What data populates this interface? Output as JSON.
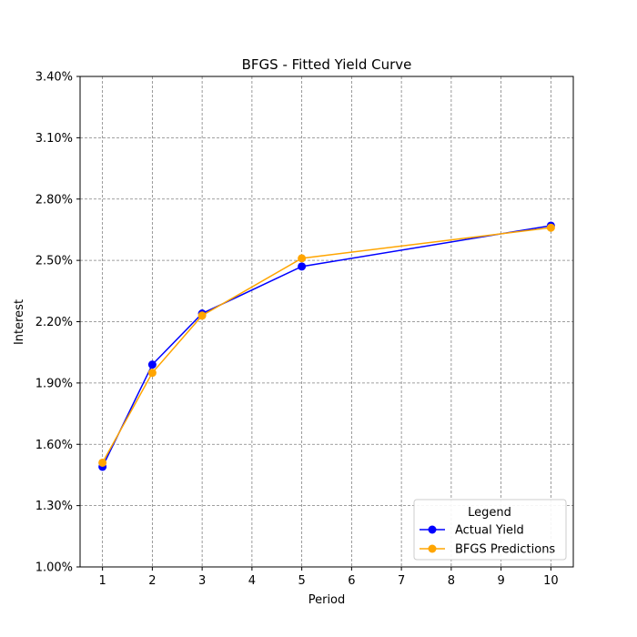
{
  "chart_data": {
    "type": "line",
    "title": "BFGS - Fitted Yield Curve",
    "xlabel": "Period",
    "ylabel": "Interest",
    "x": [
      1,
      2,
      3,
      5,
      10
    ],
    "x_ticks": [
      1,
      2,
      3,
      4,
      5,
      6,
      7,
      8,
      9,
      10
    ],
    "x_tick_labels": [
      "1",
      "2",
      "3",
      "4",
      "5",
      "6",
      "7",
      "8",
      "9",
      "10"
    ],
    "xlim": [
      0.55,
      10.45
    ],
    "y_ticks": [
      1.0,
      1.3,
      1.6,
      1.9,
      2.2,
      2.5,
      2.8,
      3.1,
      3.4
    ],
    "y_tick_labels": [
      "1.00%",
      "1.30%",
      "1.60%",
      "1.90%",
      "2.20%",
      "2.50%",
      "2.80%",
      "3.10%",
      "3.40%"
    ],
    "ylim": [
      1.0,
      3.4
    ],
    "grid": true,
    "legend": {
      "title": "Legend",
      "position": "lower-right"
    },
    "series": [
      {
        "name": "Actual Yield",
        "color": "#0000ff",
        "values": [
          1.49,
          1.99,
          2.24,
          2.47,
          2.67
        ]
      },
      {
        "name": "BFGS Predictions",
        "color": "#ffa500",
        "values": [
          1.51,
          1.95,
          2.23,
          2.51,
          2.66
        ]
      }
    ]
  }
}
